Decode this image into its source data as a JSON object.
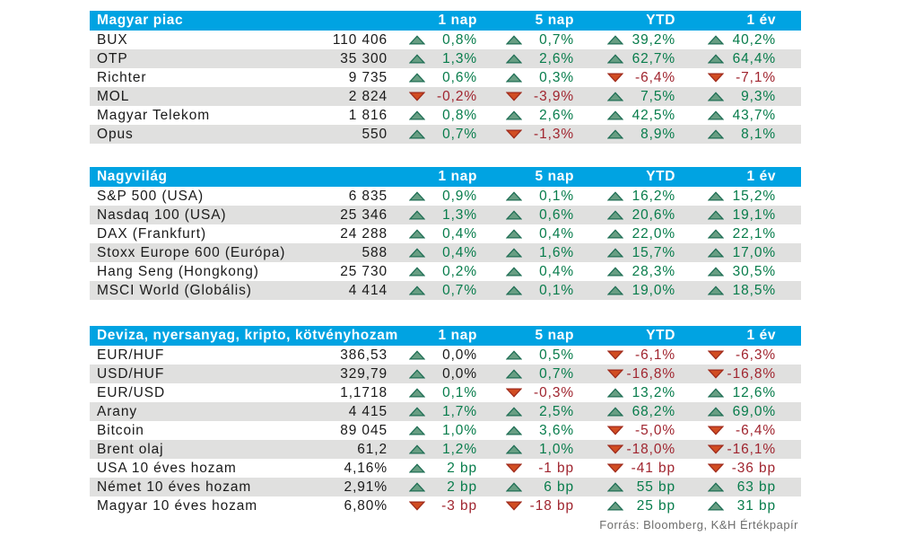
{
  "columns": [
    "1 nap",
    "5 nap",
    "YTD",
    "1 év"
  ],
  "source_note": "Forrás: Bloomberg, K&H Értékpapír",
  "colors": {
    "header_bg": "#00a3e2",
    "row_alt_bg": "#e0e0df",
    "positive_text": "#077c4b",
    "negative_text": "#a0252f",
    "neutral_text": "#1a1a1a",
    "up_fill": "#689e83",
    "up_stroke": "#206f55",
    "down_fill": "#d14d22",
    "down_stroke": "#a02b1c"
  },
  "sections": [
    {
      "title": "Magyar piac",
      "rows": [
        {
          "name": "BUX",
          "value": "110 406",
          "changes": [
            {
              "dir": "up",
              "text": "0,8%",
              "tone": "pos"
            },
            {
              "dir": "up",
              "text": "0,7%",
              "tone": "pos"
            },
            {
              "dir": "up",
              "text": "39,2%",
              "tone": "pos"
            },
            {
              "dir": "up",
              "text": "40,2%",
              "tone": "pos"
            }
          ]
        },
        {
          "name": "OTP",
          "value": "35 300",
          "changes": [
            {
              "dir": "up",
              "text": "1,3%",
              "tone": "pos"
            },
            {
              "dir": "up",
              "text": "2,6%",
              "tone": "pos"
            },
            {
              "dir": "up",
              "text": "62,7%",
              "tone": "pos"
            },
            {
              "dir": "up",
              "text": "64,4%",
              "tone": "pos"
            }
          ]
        },
        {
          "name": "Richter",
          "value": "9 735",
          "changes": [
            {
              "dir": "up",
              "text": "0,6%",
              "tone": "pos"
            },
            {
              "dir": "up",
              "text": "0,3%",
              "tone": "pos"
            },
            {
              "dir": "down",
              "text": "-6,4%",
              "tone": "neg"
            },
            {
              "dir": "down",
              "text": "-7,1%",
              "tone": "neg"
            }
          ]
        },
        {
          "name": "MOL",
          "value": "2 824",
          "changes": [
            {
              "dir": "down",
              "text": "-0,2%",
              "tone": "neg"
            },
            {
              "dir": "down",
              "text": "-3,9%",
              "tone": "neg"
            },
            {
              "dir": "up",
              "text": "7,5%",
              "tone": "pos"
            },
            {
              "dir": "up",
              "text": "9,3%",
              "tone": "pos"
            }
          ]
        },
        {
          "name": "Magyar Telekom",
          "value": "1 816",
          "changes": [
            {
              "dir": "up",
              "text": "0,8%",
              "tone": "pos"
            },
            {
              "dir": "up",
              "text": "2,6%",
              "tone": "pos"
            },
            {
              "dir": "up",
              "text": "42,5%",
              "tone": "pos"
            },
            {
              "dir": "up",
              "text": "43,7%",
              "tone": "pos"
            }
          ]
        },
        {
          "name": "Opus",
          "value": "550",
          "changes": [
            {
              "dir": "up",
              "text": "0,7%",
              "tone": "pos"
            },
            {
              "dir": "down",
              "text": "-1,3%",
              "tone": "neg"
            },
            {
              "dir": "up",
              "text": "8,9%",
              "tone": "pos"
            },
            {
              "dir": "up",
              "text": "8,1%",
              "tone": "pos"
            }
          ]
        }
      ]
    },
    {
      "title": "Nagyvilág",
      "rows": [
        {
          "name": "S&P 500 (USA)",
          "value": "6 835",
          "changes": [
            {
              "dir": "up",
              "text": "0,9%",
              "tone": "pos"
            },
            {
              "dir": "up",
              "text": "0,1%",
              "tone": "pos"
            },
            {
              "dir": "up",
              "text": "16,2%",
              "tone": "pos"
            },
            {
              "dir": "up",
              "text": "15,2%",
              "tone": "pos"
            }
          ]
        },
        {
          "name": "Nasdaq 100 (USA)",
          "value": "25 346",
          "changes": [
            {
              "dir": "up",
              "text": "1,3%",
              "tone": "pos"
            },
            {
              "dir": "up",
              "text": "0,6%",
              "tone": "pos"
            },
            {
              "dir": "up",
              "text": "20,6%",
              "tone": "pos"
            },
            {
              "dir": "up",
              "text": "19,1%",
              "tone": "pos"
            }
          ]
        },
        {
          "name": "DAX (Frankfurt)",
          "value": "24 288",
          "changes": [
            {
              "dir": "up",
              "text": "0,4%",
              "tone": "pos"
            },
            {
              "dir": "up",
              "text": "0,4%",
              "tone": "pos"
            },
            {
              "dir": "up",
              "text": "22,0%",
              "tone": "pos"
            },
            {
              "dir": "up",
              "text": "22,1%",
              "tone": "pos"
            }
          ]
        },
        {
          "name": "Stoxx Europe 600 (Európa)",
          "value": "588",
          "changes": [
            {
              "dir": "up",
              "text": "0,4%",
              "tone": "pos"
            },
            {
              "dir": "up",
              "text": "1,6%",
              "tone": "pos"
            },
            {
              "dir": "up",
              "text": "15,7%",
              "tone": "pos"
            },
            {
              "dir": "up",
              "text": "17,0%",
              "tone": "pos"
            }
          ]
        },
        {
          "name": "Hang Seng (Hongkong)",
          "value": "25 730",
          "changes": [
            {
              "dir": "up",
              "text": "0,2%",
              "tone": "pos"
            },
            {
              "dir": "up",
              "text": "0,4%",
              "tone": "pos"
            },
            {
              "dir": "up",
              "text": "28,3%",
              "tone": "pos"
            },
            {
              "dir": "up",
              "text": "30,5%",
              "tone": "pos"
            }
          ]
        },
        {
          "name": "MSCI World (Globális)",
          "value": "4 414",
          "changes": [
            {
              "dir": "up",
              "text": "0,7%",
              "tone": "pos"
            },
            {
              "dir": "up",
              "text": "0,1%",
              "tone": "pos"
            },
            {
              "dir": "up",
              "text": "19,0%",
              "tone": "pos"
            },
            {
              "dir": "up",
              "text": "18,5%",
              "tone": "pos"
            }
          ]
        }
      ]
    },
    {
      "title": "Deviza, nyersanyag, kripto, kötvényhozam",
      "rows": [
        {
          "name": "EUR/HUF",
          "value": "386,53",
          "changes": [
            {
              "dir": "up",
              "text": "0,0%",
              "tone": "neu"
            },
            {
              "dir": "up",
              "text": "0,5%",
              "tone": "pos"
            },
            {
              "dir": "down",
              "text": "-6,1%",
              "tone": "neg"
            },
            {
              "dir": "down",
              "text": "-6,3%",
              "tone": "neg"
            }
          ]
        },
        {
          "name": "USD/HUF",
          "value": "329,79",
          "changes": [
            {
              "dir": "up",
              "text": "0,0%",
              "tone": "neu"
            },
            {
              "dir": "up",
              "text": "0,7%",
              "tone": "pos"
            },
            {
              "dir": "down",
              "text": "-16,8%",
              "tone": "neg"
            },
            {
              "dir": "down",
              "text": "-16,8%",
              "tone": "neg"
            }
          ]
        },
        {
          "name": "EUR/USD",
          "value": "1,1718",
          "changes": [
            {
              "dir": "up",
              "text": "0,1%",
              "tone": "pos"
            },
            {
              "dir": "down",
              "text": "-0,3%",
              "tone": "neg"
            },
            {
              "dir": "up",
              "text": "13,2%",
              "tone": "pos"
            },
            {
              "dir": "up",
              "text": "12,6%",
              "tone": "pos"
            }
          ]
        },
        {
          "name": "Arany",
          "value": "4 415",
          "changes": [
            {
              "dir": "up",
              "text": "1,7%",
              "tone": "pos"
            },
            {
              "dir": "up",
              "text": "2,5%",
              "tone": "pos"
            },
            {
              "dir": "up",
              "text": "68,2%",
              "tone": "pos"
            },
            {
              "dir": "up",
              "text": "69,0%",
              "tone": "pos"
            }
          ]
        },
        {
          "name": "Bitcoin",
          "value": "89 045",
          "changes": [
            {
              "dir": "up",
              "text": "1,0%",
              "tone": "pos"
            },
            {
              "dir": "up",
              "text": "3,6%",
              "tone": "pos"
            },
            {
              "dir": "down",
              "text": "-5,0%",
              "tone": "neg"
            },
            {
              "dir": "down",
              "text": "-6,4%",
              "tone": "neg"
            }
          ]
        },
        {
          "name": "Brent olaj",
          "value": "61,2",
          "changes": [
            {
              "dir": "up",
              "text": "1,2%",
              "tone": "pos"
            },
            {
              "dir": "up",
              "text": "1,0%",
              "tone": "pos"
            },
            {
              "dir": "down",
              "text": "-18,0%",
              "tone": "neg"
            },
            {
              "dir": "down",
              "text": "-16,1%",
              "tone": "neg"
            }
          ]
        },
        {
          "name": "USA 10 éves hozam",
          "value": "4,16%",
          "changes": [
            {
              "dir": "up",
              "text": "2 bp",
              "tone": "pos"
            },
            {
              "dir": "down",
              "text": "-1 bp",
              "tone": "neg"
            },
            {
              "dir": "down",
              "text": "-41 bp",
              "tone": "neg"
            },
            {
              "dir": "down",
              "text": "-36 bp",
              "tone": "neg"
            }
          ]
        },
        {
          "name": "Német 10 éves hozam",
          "value": "2,91%",
          "changes": [
            {
              "dir": "up",
              "text": "2 bp",
              "tone": "pos"
            },
            {
              "dir": "up",
              "text": "6 bp",
              "tone": "pos"
            },
            {
              "dir": "up",
              "text": "55 bp",
              "tone": "pos"
            },
            {
              "dir": "up",
              "text": "63 bp",
              "tone": "pos"
            }
          ]
        },
        {
          "name": "Magyar 10 éves hozam",
          "value": "6,80%",
          "changes": [
            {
              "dir": "down",
              "text": "-3 bp",
              "tone": "neg"
            },
            {
              "dir": "down",
              "text": "-18 bp",
              "tone": "neg"
            },
            {
              "dir": "up",
              "text": "25 bp",
              "tone": "pos"
            },
            {
              "dir": "up",
              "text": "31 bp",
              "tone": "pos"
            }
          ]
        }
      ]
    }
  ]
}
